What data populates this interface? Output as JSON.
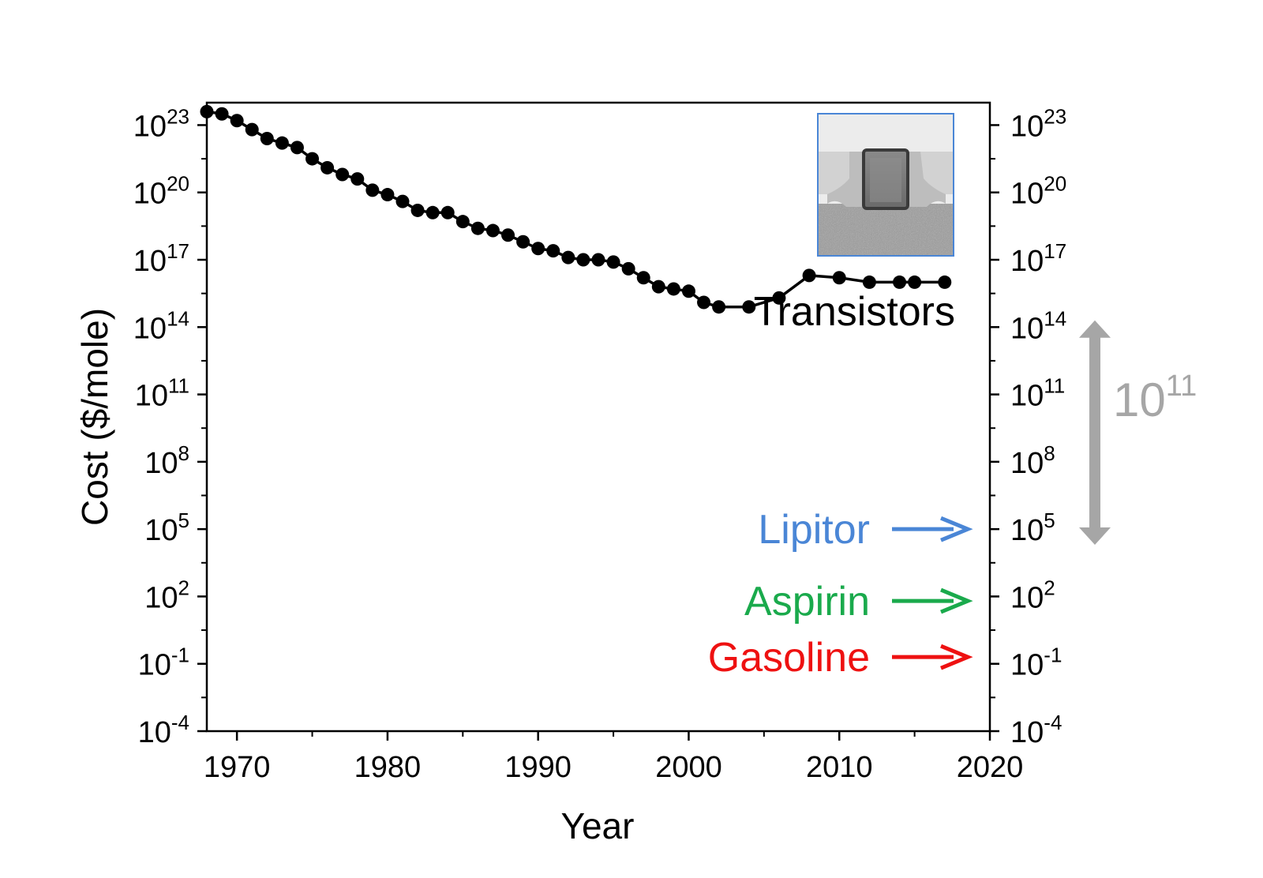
{
  "chart_data": {
    "type": "line",
    "title": "",
    "xlabel": "Year",
    "ylabel": "Cost ($/mole)",
    "xlim": [
      1968,
      2020
    ],
    "y_scale": "log",
    "ylim_exponent": [
      -4,
      24
    ],
    "x_ticks": [
      "1970",
      "1980",
      "1990",
      "2000",
      "2010",
      "2020"
    ],
    "y_ticks": [
      {
        "base": "10",
        "exp": "23",
        "exponent": 23
      },
      {
        "base": "10",
        "exp": "20",
        "exponent": 20
      },
      {
        "base": "10",
        "exp": "17",
        "exponent": 17
      },
      {
        "base": "10",
        "exp": "14",
        "exponent": 14
      },
      {
        "base": "10",
        "exp": "11",
        "exponent": 11
      },
      {
        "base": "10",
        "exp": "8",
        "exponent": 8
      },
      {
        "base": "10",
        "exp": "5",
        "exponent": 5
      },
      {
        "base": "10",
        "exp": "2",
        "exponent": 2
      },
      {
        "base": "10",
        "exp": "-1",
        "exponent": -1
      },
      {
        "base": "10",
        "exp": "-4",
        "exponent": -4
      }
    ],
    "right_axis_mirrors_left": true,
    "grid": false,
    "series": [
      {
        "name": "Transistors",
        "color": "#000000",
        "x": [
          1968,
          1969,
          1970,
          1971,
          1972,
          1973,
          1974,
          1975,
          1976,
          1977,
          1978,
          1979,
          1980,
          1981,
          1982,
          1983,
          1984,
          1985,
          1986,
          1987,
          1988,
          1989,
          1990,
          1991,
          1992,
          1993,
          1994,
          1995,
          1996,
          1997,
          1998,
          1999,
          2000,
          2001,
          2002,
          2004,
          2006,
          2008,
          2010,
          2012,
          2014,
          2015,
          2017
        ],
        "log10_y": [
          23.6,
          23.5,
          23.2,
          22.8,
          22.4,
          22.2,
          22.0,
          21.5,
          21.1,
          20.8,
          20.6,
          20.1,
          19.9,
          19.6,
          19.2,
          19.1,
          19.1,
          18.7,
          18.4,
          18.3,
          18.1,
          17.8,
          17.5,
          17.4,
          17.1,
          17.0,
          17.0,
          16.9,
          16.6,
          16.2,
          15.8,
          15.7,
          15.6,
          15.1,
          14.9,
          14.9,
          15.3,
          16.3,
          16.2,
          16.0,
          16.0,
          16.0,
          16.0
        ]
      }
    ],
    "annotations": {
      "series_label": "Transistors",
      "range_arrow": {
        "base": "10",
        "exp": "11",
        "from_exponent": 4.3,
        "to_exponent": 14.3,
        "color": "#a6a6a6"
      },
      "markers": [
        {
          "label": "Lipitor",
          "color": "#4a86d6",
          "exponent": 5
        },
        {
          "label": "Aspirin",
          "color": "#1aaa4c",
          "exponent": 1.8
        },
        {
          "label": "Gasoline",
          "color": "#ee1111",
          "exponent": -0.7
        }
      ]
    },
    "inset": {
      "kind": "transistor-micrograph",
      "border_color": "#4a86d6"
    }
  }
}
